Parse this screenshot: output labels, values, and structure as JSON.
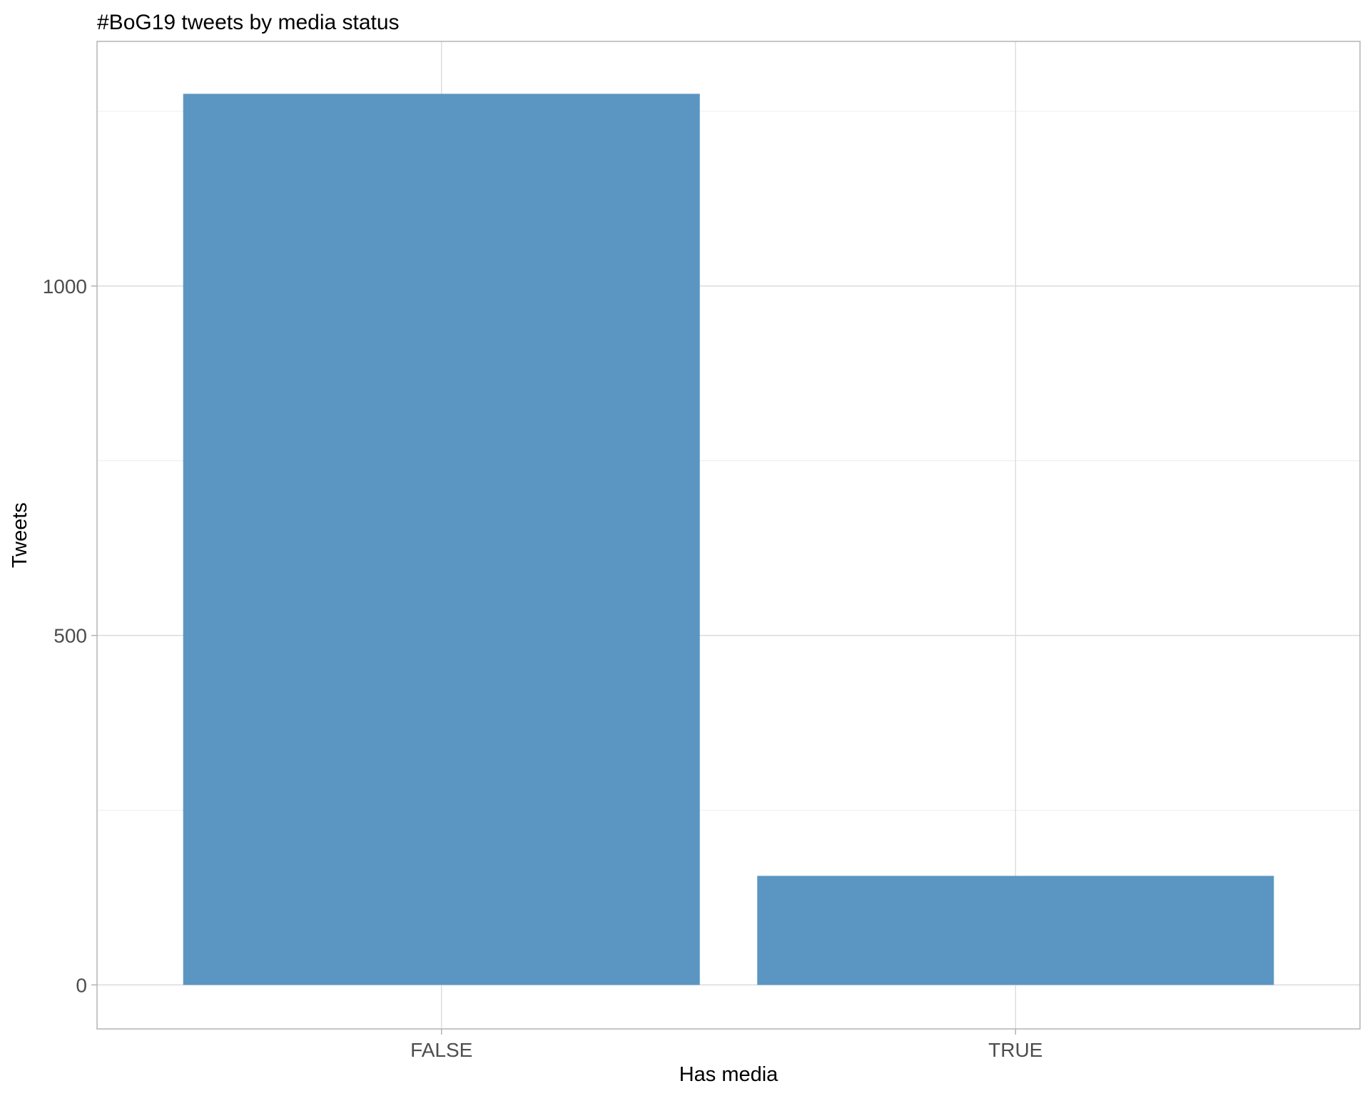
{
  "chart_data": {
    "type": "bar",
    "title": "#BoG19 tweets by media status",
    "xlabel": "Has media",
    "ylabel": "Tweets",
    "categories": [
      "FALSE",
      "TRUE"
    ],
    "values": [
      1275,
      156
    ],
    "ylim": [
      -63,
      1350
    ],
    "yticks": [
      0,
      500,
      1000
    ],
    "ytick_labels": [
      "0",
      "500",
      "1000"
    ],
    "grid": true,
    "bar_color": "#5b96c2",
    "legend": "none"
  }
}
